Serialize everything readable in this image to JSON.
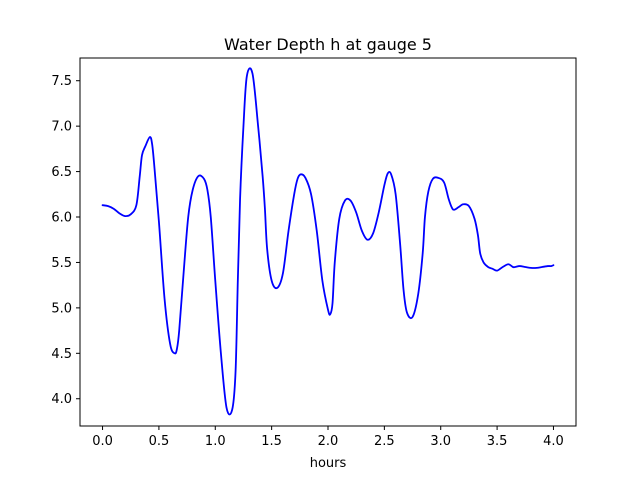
{
  "chart_data": {
    "type": "line",
    "title": "Water Depth h at gauge 5",
    "xlabel": "hours",
    "ylabel": "",
    "xlim": [
      -0.2,
      4.2
    ],
    "ylim": [
      3.7,
      7.75
    ],
    "xticks": [
      0.0,
      0.5,
      1.0,
      1.5,
      2.0,
      2.5,
      3.0,
      3.5,
      4.0
    ],
    "xtick_labels": [
      "0.0",
      "0.5",
      "1.0",
      "1.5",
      "2.0",
      "2.5",
      "3.0",
      "3.5",
      "4.0"
    ],
    "yticks": [
      4.0,
      4.5,
      5.0,
      5.5,
      6.0,
      6.5,
      7.0,
      7.5
    ],
    "ytick_labels": [
      "4.0",
      "4.5",
      "5.0",
      "5.5",
      "6.0",
      "6.5",
      "7.0",
      "7.5"
    ],
    "grid": false,
    "legend": "none",
    "series": [
      {
        "color": "#0000ff",
        "x": [
          0.0,
          0.05,
          0.1,
          0.15,
          0.2,
          0.25,
          0.3,
          0.33,
          0.35,
          0.38,
          0.42,
          0.44,
          0.46,
          0.5,
          0.55,
          0.6,
          0.64,
          0.66,
          0.68,
          0.72,
          0.76,
          0.8,
          0.85,
          0.9,
          0.93,
          0.96,
          1.0,
          1.05,
          1.1,
          1.15,
          1.18,
          1.2,
          1.22,
          1.25,
          1.28,
          1.33,
          1.38,
          1.42,
          1.44,
          1.46,
          1.5,
          1.55,
          1.6,
          1.65,
          1.7,
          1.73,
          1.76,
          1.8,
          1.85,
          1.9,
          1.95,
          2.0,
          2.02,
          2.04,
          2.06,
          2.1,
          2.15,
          2.2,
          2.25,
          2.3,
          2.35,
          2.4,
          2.45,
          2.5,
          2.53,
          2.56,
          2.6,
          2.64,
          2.67,
          2.7,
          2.75,
          2.8,
          2.84,
          2.86,
          2.89,
          2.93,
          2.98,
          3.03,
          3.07,
          3.1,
          3.12,
          3.16,
          3.2,
          3.25,
          3.3,
          3.33,
          3.35,
          3.38,
          3.42,
          3.46,
          3.5,
          3.55,
          3.6,
          3.64,
          3.66,
          3.7,
          3.75,
          3.8,
          3.85,
          3.9,
          3.95,
          3.98,
          4.0
        ],
        "y": [
          6.13,
          6.12,
          6.09,
          6.04,
          6.01,
          6.03,
          6.13,
          6.45,
          6.68,
          6.78,
          6.88,
          6.8,
          6.55,
          5.95,
          5.1,
          4.6,
          4.5,
          4.55,
          4.75,
          5.4,
          6.0,
          6.3,
          6.45,
          6.42,
          6.3,
          6.0,
          5.3,
          4.5,
          3.9,
          3.88,
          4.3,
          5.3,
          6.2,
          7.0,
          7.55,
          7.58,
          7.0,
          6.45,
          6.1,
          5.65,
          5.3,
          5.22,
          5.38,
          5.85,
          6.25,
          6.42,
          6.47,
          6.43,
          6.25,
          5.85,
          5.3,
          4.98,
          4.93,
          5.05,
          5.5,
          5.98,
          6.18,
          6.18,
          6.05,
          5.85,
          5.75,
          5.82,
          6.05,
          6.35,
          6.48,
          6.47,
          6.25,
          5.7,
          5.2,
          4.95,
          4.9,
          5.15,
          5.6,
          6.0,
          6.28,
          6.42,
          6.43,
          6.38,
          6.2,
          6.1,
          6.08,
          6.11,
          6.14,
          6.12,
          5.98,
          5.8,
          5.6,
          5.5,
          5.45,
          5.43,
          5.41,
          5.45,
          5.48,
          5.45,
          5.45,
          5.46,
          5.45,
          5.44,
          5.44,
          5.45,
          5.46,
          5.46,
          5.47
        ]
      }
    ]
  }
}
